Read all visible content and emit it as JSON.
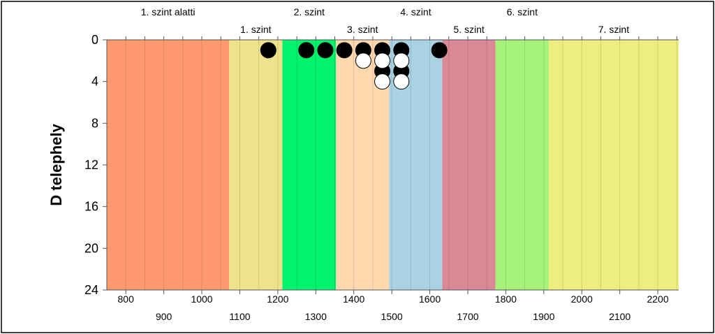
{
  "chart_data": {
    "type": "scatter",
    "title": "",
    "xlabel": "",
    "ylabel": "D telephely",
    "xlim": [
      750,
      2255
    ],
    "ylim": [
      0,
      24
    ],
    "y_inverted": true,
    "yticks": [
      0,
      4,
      8,
      12,
      16,
      20,
      24
    ],
    "xticks_upper_row": [
      800,
      1000,
      1200,
      1400,
      1600,
      1800,
      2000,
      2200
    ],
    "xticks_lower_row": [
      900,
      1100,
      1300,
      1500,
      1700,
      1900,
      2100
    ],
    "levels": [
      {
        "name": "1. szint alatti",
        "from": 750,
        "to": 1072,
        "color": "#FF9A70",
        "label_row": "top"
      },
      {
        "name": "1. szint",
        "from": 1072,
        "to": 1212,
        "color": "#EEE28C",
        "label_row": "bottom"
      },
      {
        "name": "2. szint",
        "from": 1212,
        "to": 1353,
        "color": "#00F36B",
        "label_row": "top"
      },
      {
        "name": "3. szint",
        "from": 1353,
        "to": 1493,
        "color": "#FFD8AE",
        "label_row": "bottom"
      },
      {
        "name": "4. szint",
        "from": 1493,
        "to": 1633,
        "color": "#A9D2E3",
        "label_row": "top"
      },
      {
        "name": "5. szint",
        "from": 1633,
        "to": 1773,
        "color": "#D98894",
        "label_row": "bottom"
      },
      {
        "name": "6. szint",
        "from": 1773,
        "to": 1913,
        "color": "#A6F27A",
        "label_row": "top"
      },
      {
        "name": "7. szint",
        "from": 1913,
        "to": 2255,
        "color": "#EDEE7E",
        "label_row": "bottom"
      }
    ],
    "series": [
      {
        "name": "black",
        "color": "#000000",
        "points": [
          {
            "x": 1175,
            "y": 1
          },
          {
            "x": 1275,
            "y": 1
          },
          {
            "x": 1325,
            "y": 1
          },
          {
            "x": 1375,
            "y": 1
          },
          {
            "x": 1425,
            "y": 1
          },
          {
            "x": 1475,
            "y": 1
          },
          {
            "x": 1525,
            "y": 1
          },
          {
            "x": 1625,
            "y": 1
          },
          {
            "x": 1475,
            "y": 3
          },
          {
            "x": 1525,
            "y": 3
          }
        ]
      },
      {
        "name": "white",
        "color": "#FFFFFF",
        "points": [
          {
            "x": 1425,
            "y": 2
          },
          {
            "x": 1475,
            "y": 2
          },
          {
            "x": 1525,
            "y": 2
          },
          {
            "x": 1475,
            "y": 4
          },
          {
            "x": 1525,
            "y": 4
          }
        ]
      }
    ]
  }
}
